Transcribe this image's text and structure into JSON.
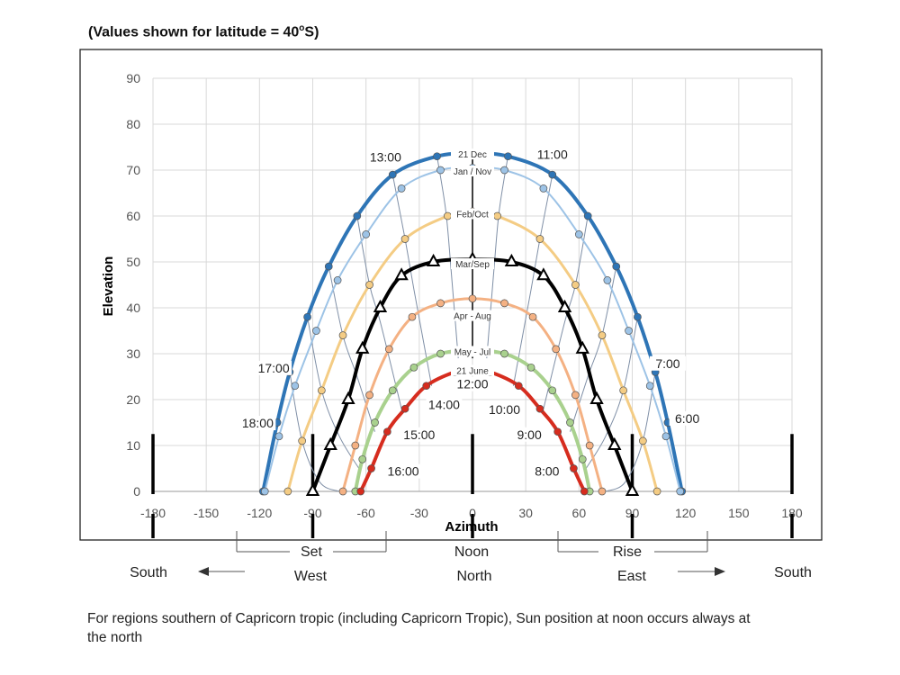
{
  "heading": "(Values shown for latitude = 40",
  "heading_sup": "o",
  "heading_end": "S)",
  "caption": "For regions southern of Capricorn tropic (including Capricorn Tropic), Sun position at noon occurs always at the north",
  "directions": {
    "set": "Set",
    "noon": "Noon",
    "rise": "Rise",
    "west": "West",
    "north": "North",
    "east": "East",
    "south_left": "South",
    "south_right": "South"
  },
  "chart_data": {
    "type": "line",
    "xlabel": "Azimuth",
    "ylabel": "Elevation",
    "xlim": [
      -180,
      180
    ],
    "ylim": [
      0,
      90
    ],
    "xticks": [
      -180,
      -150,
      -120,
      -90,
      -60,
      -30,
      0,
      30,
      60,
      90,
      120,
      150,
      180
    ],
    "xtick_labels": [
      "-180",
      "-150",
      "-120",
      "-90",
      "-60",
      "-30",
      "0",
      "30",
      "60",
      "90",
      "120",
      "150",
      "180"
    ],
    "yticks": [
      0,
      10,
      20,
      30,
      40,
      50,
      60,
      70,
      80,
      90
    ],
    "grid": true,
    "series": [
      {
        "name": "21 Dec",
        "color": "#2e75b6",
        "width": 4,
        "marker": "circle",
        "x": [
          -118,
          -110,
          -103,
          -93,
          -81,
          -65,
          -45,
          -20,
          0,
          20,
          45,
          65,
          81,
          93,
          103,
          110,
          118
        ],
        "y": [
          0,
          15,
          26,
          38,
          49,
          60,
          69,
          73,
          73.6,
          73,
          69,
          60,
          49,
          38,
          26,
          15,
          0
        ]
      },
      {
        "name": "Jan / Nov",
        "color": "#9dc3e6",
        "width": 2,
        "marker": "circle",
        "x": [
          -117,
          -109,
          -100,
          -88,
          -76,
          -60,
          -40,
          -18,
          0,
          18,
          40,
          60,
          76,
          88,
          100,
          109,
          117
        ],
        "y": [
          0,
          12,
          23,
          35,
          46,
          56,
          66,
          70,
          70.5,
          70,
          66,
          56,
          46,
          35,
          23,
          12,
          0
        ]
      },
      {
        "name": "Feb/Oct",
        "color": "#f4cc84",
        "width": 3,
        "marker": "circle",
        "x": [
          -104,
          -96,
          -85,
          -73,
          -58,
          -38,
          -14,
          0,
          14,
          38,
          58,
          73,
          85,
          96,
          104
        ],
        "y": [
          0,
          11,
          22,
          34,
          45,
          55,
          60,
          61,
          60,
          55,
          45,
          34,
          22,
          11,
          0
        ]
      },
      {
        "name": "Mar/Sep",
        "color": "#000000",
        "width": 4,
        "marker": "triangle",
        "x": [
          -90,
          -80,
          -70,
          -62,
          -52,
          -40,
          -22,
          0,
          22,
          40,
          52,
          62,
          70,
          80,
          90
        ],
        "y": [
          0,
          10,
          20,
          31,
          40,
          47,
          50,
          50.5,
          50,
          47,
          40,
          31,
          20,
          10,
          0
        ]
      },
      {
        "name": "Apr - Aug",
        "color": "#f4b183",
        "width": 3,
        "marker": "circle",
        "x": [
          -73,
          -66,
          -58,
          -47,
          -34,
          -18,
          0,
          18,
          34,
          47,
          58,
          66,
          73
        ],
        "y": [
          0,
          10,
          21,
          31,
          38,
          41,
          42,
          41,
          38,
          31,
          21,
          10,
          0
        ]
      },
      {
        "name": "May - Jul",
        "color": "#a9d18e",
        "width": 4,
        "marker": "circle",
        "x": [
          -66,
          -62,
          -55,
          -45,
          -33,
          -18,
          0,
          18,
          33,
          45,
          55,
          62,
          66
        ],
        "y": [
          0,
          7,
          15,
          22,
          27,
          30,
          30.7,
          30,
          27,
          22,
          15,
          7,
          0
        ]
      },
      {
        "name": "21 June",
        "color": "#d62c1e",
        "width": 4,
        "marker": "circle",
        "x": [
          -63,
          -57,
          -48,
          -38,
          -26,
          -10,
          0,
          10,
          26,
          38,
          48,
          57,
          63
        ],
        "y": [
          0,
          5,
          13,
          18,
          23,
          26,
          26.5,
          26,
          23,
          18,
          13,
          5,
          0
        ]
      }
    ],
    "hour_lines": [
      {
        "name": "13:00",
        "x": [
          -20,
          -15,
          -12,
          -8
        ],
        "y": [
          73,
          61,
          48,
          29
        ]
      },
      {
        "name": "14:00",
        "x": [
          -45,
          -38,
          -33,
          -23
        ],
        "y": [
          69,
          55,
          44,
          23
        ]
      },
      {
        "name": "15:00",
        "x": [
          -65,
          -58,
          -52,
          -40
        ],
        "y": [
          60,
          45,
          37,
          18
        ]
      },
      {
        "name": "16:00",
        "x": [
          -81,
          -73,
          -65,
          -55
        ],
        "y": [
          49,
          34,
          25,
          13
        ]
      },
      {
        "name": "17:00",
        "x": [
          -93,
          -85,
          -75,
          -64
        ],
        "y": [
          38,
          22,
          12,
          5
        ]
      },
      {
        "name": "18:00",
        "x": [
          -103,
          -96,
          -86,
          -75
        ],
        "y": [
          26,
          11,
          2,
          0
        ]
      },
      {
        "name": "11:00",
        "x": [
          20,
          15,
          12,
          8
        ],
        "y": [
          73,
          61,
          48,
          29
        ]
      },
      {
        "name": "10:00",
        "x": [
          45,
          38,
          33,
          23
        ],
        "y": [
          69,
          55,
          44,
          23
        ]
      },
      {
        "name": "9:00",
        "x": [
          65,
          58,
          52,
          40
        ],
        "y": [
          60,
          45,
          37,
          18
        ]
      },
      {
        "name": "8:00",
        "x": [
          81,
          73,
          65,
          55
        ],
        "y": [
          49,
          34,
          25,
          13
        ]
      },
      {
        "name": "7:00",
        "x": [
          93,
          85,
          75,
          64
        ],
        "y": [
          38,
          22,
          12,
          5
        ]
      },
      {
        "name": "6:00",
        "x": [
          103,
          96,
          86,
          75
        ],
        "y": [
          26,
          11,
          2,
          0
        ]
      }
    ],
    "month_labels": [
      {
        "text": "21 Dec",
        "x": 0,
        "y": 73.5
      },
      {
        "text": "Jan / Nov",
        "x": 0,
        "y": 69.8
      },
      {
        "text": "Feb/Oct",
        "x": 0,
        "y": 60.5
      },
      {
        "text": "Mar/Sep",
        "x": 0,
        "y": 49.6
      },
      {
        "text": "Apr - Aug",
        "x": 0,
        "y": 38.3
      },
      {
        "text": "May - Jul",
        "x": 0,
        "y": 30.5
      },
      {
        "text": "21 June",
        "x": 0,
        "y": 26.4
      }
    ],
    "hour_labels": [
      {
        "text": "13:00",
        "x": -49,
        "y": 72.5
      },
      {
        "text": "11:00",
        "x": 45,
        "y": 73
      },
      {
        "text": "17:00",
        "x": -112,
        "y": 26.5
      },
      {
        "text": "18:00",
        "x": -121,
        "y": 14.5
      },
      {
        "text": "7:00",
        "x": 110,
        "y": 27.5
      },
      {
        "text": "6:00",
        "x": 121,
        "y": 15.5
      },
      {
        "text": "16:00",
        "x": -39,
        "y": 4
      },
      {
        "text": "15:00",
        "x": -30,
        "y": 12
      },
      {
        "text": "14:00",
        "x": -16,
        "y": 18.5
      },
      {
        "text": "12:00",
        "x": 0,
        "y": 23
      },
      {
        "text": "10:00",
        "x": 18,
        "y": 17.5
      },
      {
        "text": "9:00",
        "x": 32,
        "y": 12
      },
      {
        "text": "8:00",
        "x": 42,
        "y": 4
      }
    ],
    "bold_markers_x": [
      -180,
      -90,
      0,
      90,
      180
    ]
  }
}
